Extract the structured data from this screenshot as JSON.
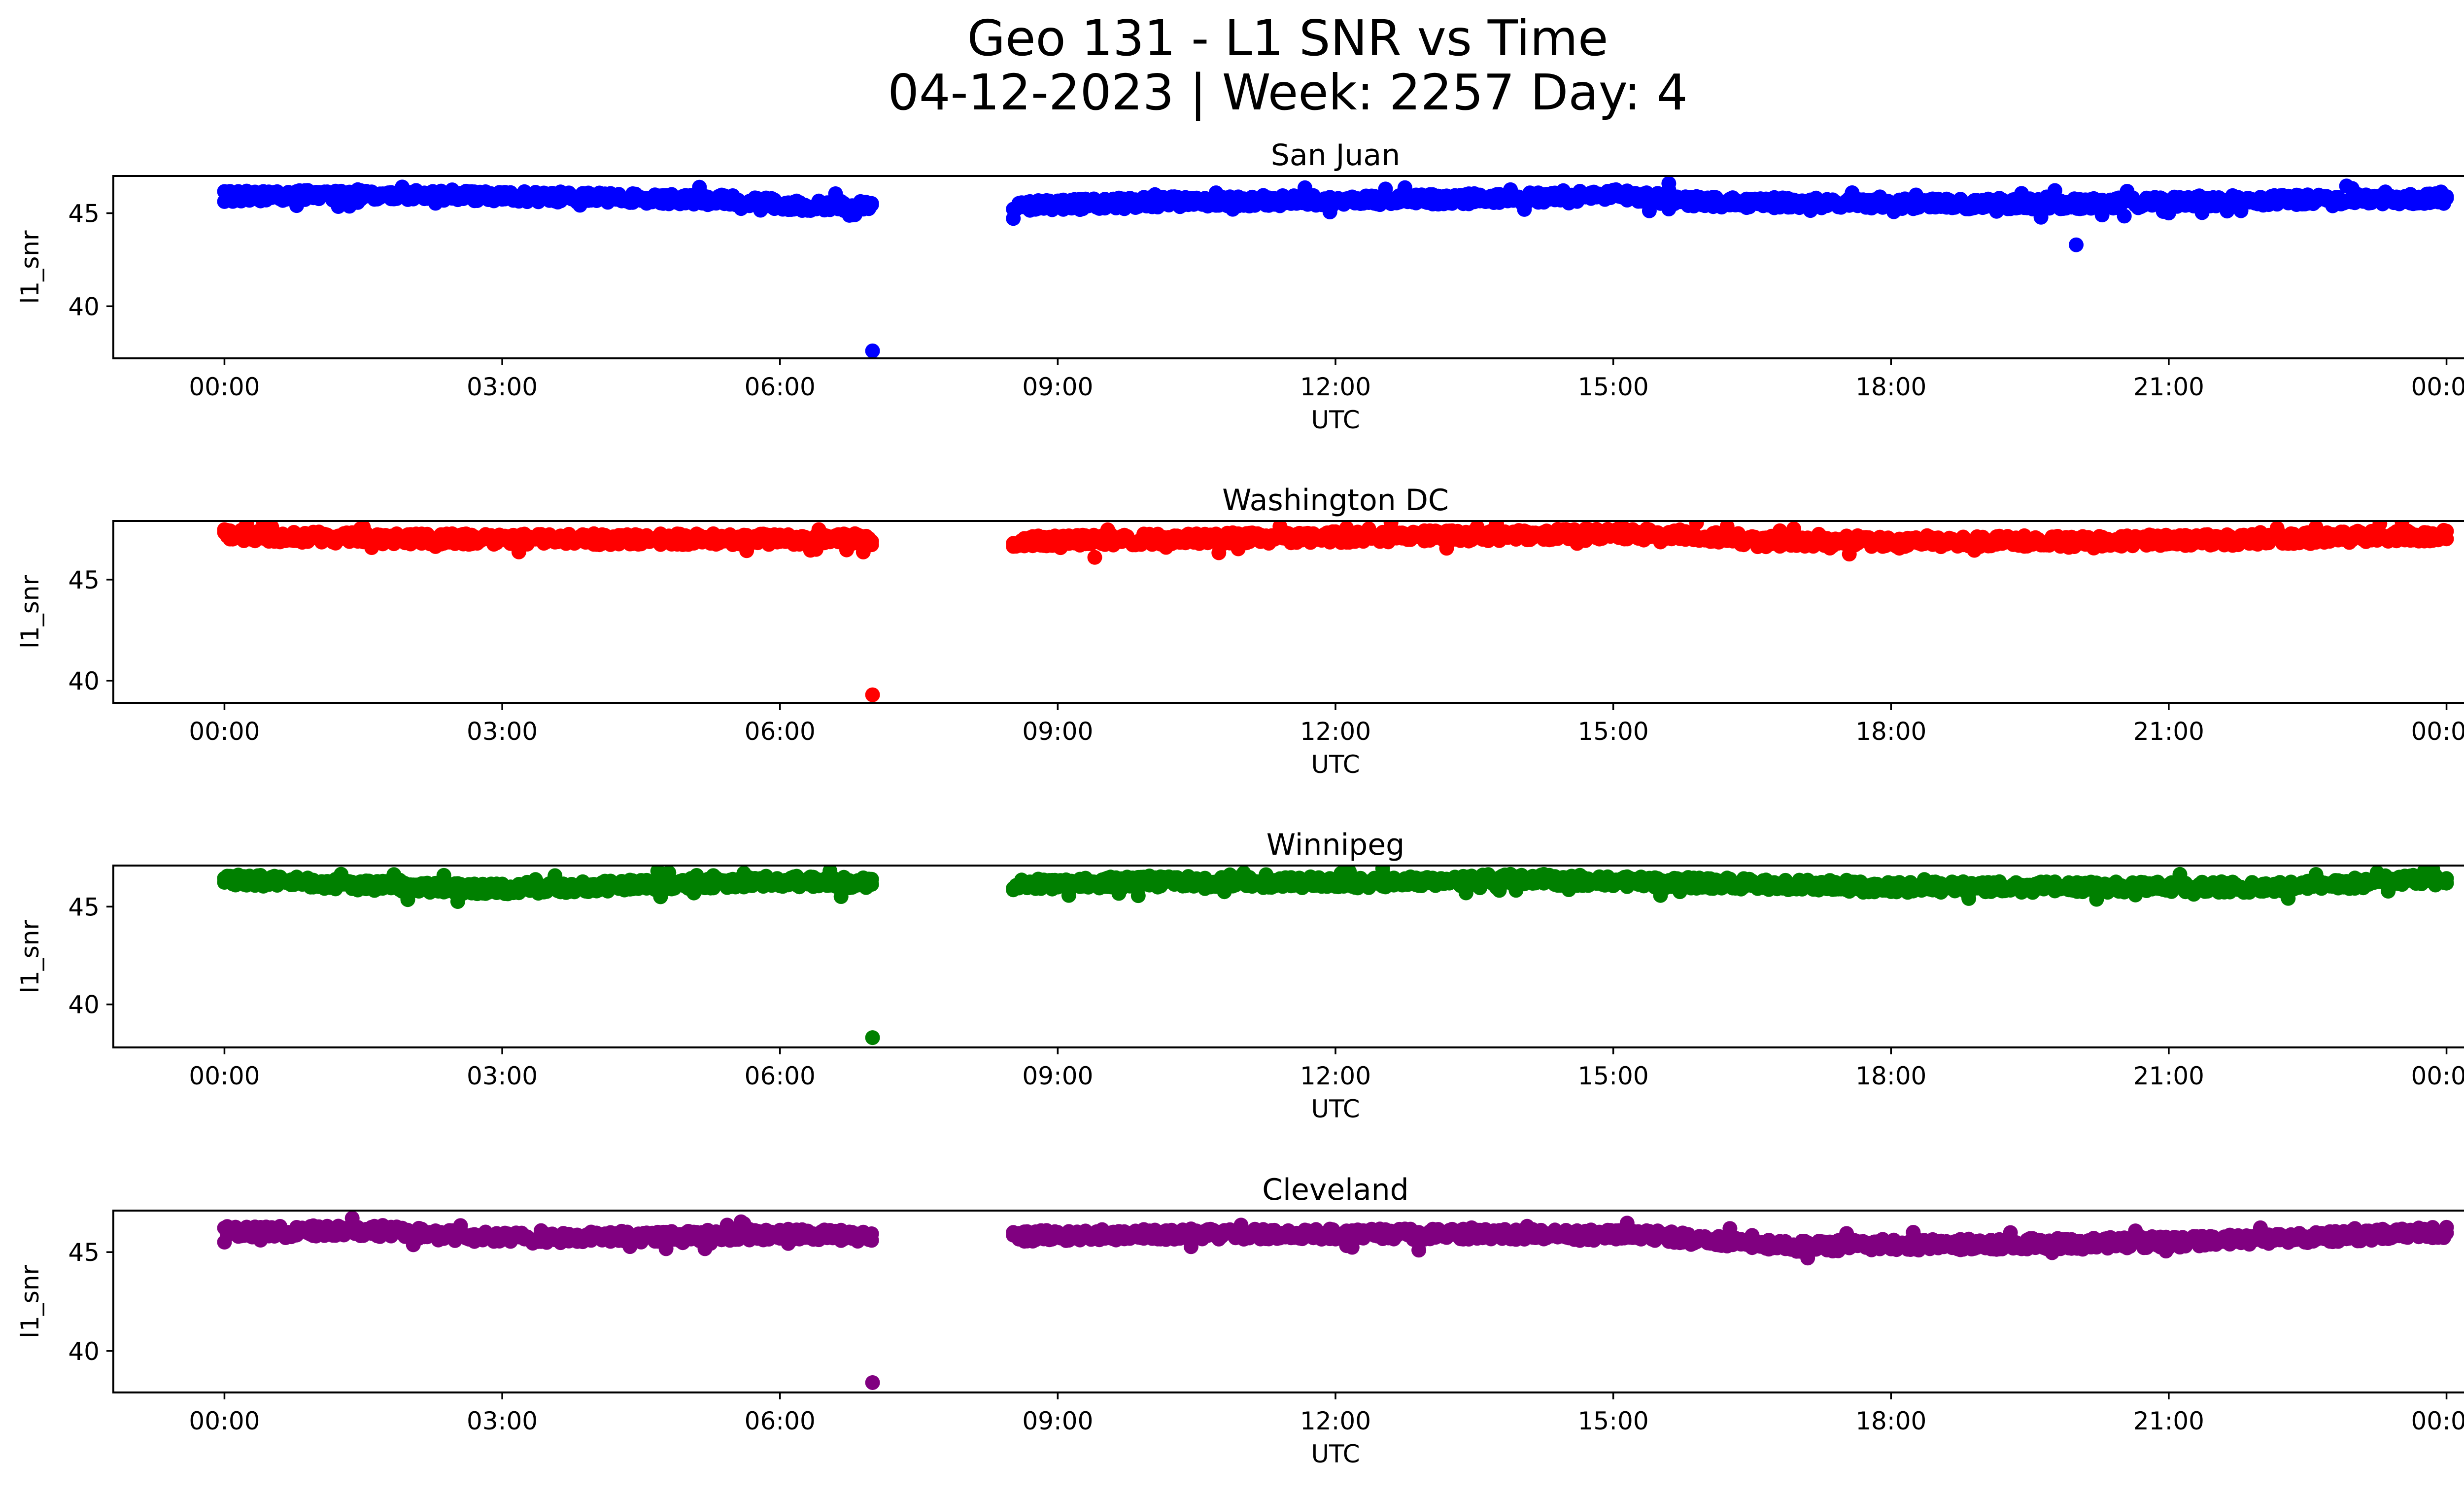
{
  "figure": {
    "title_line1": "Geo 131 - L1 SNR vs Time",
    "title_line2": "04-12-2023 | Week: 2257 Day: 4"
  },
  "chart_data": [
    {
      "type": "scatter",
      "title": "San Juan",
      "xlabel": "UTC",
      "ylabel": "l1_snr",
      "color": "#0000ff",
      "x_ticks": [
        "00:00",
        "03:00",
        "06:00",
        "09:00",
        "12:00",
        "15:00",
        "18:00",
        "21:00",
        "00:00"
      ],
      "y_ticks": [
        40,
        45
      ],
      "xlim_hours": [
        -1.2,
        25.2
      ],
      "ylim": [
        37.2,
        47.0
      ],
      "data_gap_hours": [
        7.0,
        8.5
      ],
      "band": [
        {
          "x": 0.0,
          "y": 45.9
        },
        {
          "x": 1.5,
          "y": 46.0
        },
        {
          "x": 3.0,
          "y": 45.9
        },
        {
          "x": 4.5,
          "y": 45.8
        },
        {
          "x": 5.5,
          "y": 45.7
        },
        {
          "x": 6.2,
          "y": 45.4
        },
        {
          "x": 7.0,
          "y": 45.4
        },
        {
          "x": 8.5,
          "y": 45.4
        },
        {
          "x": 10.0,
          "y": 45.6
        },
        {
          "x": 12.0,
          "y": 45.7
        },
        {
          "x": 14.0,
          "y": 45.8
        },
        {
          "x": 15.0,
          "y": 46.0
        },
        {
          "x": 16.0,
          "y": 45.6
        },
        {
          "x": 18.0,
          "y": 45.5
        },
        {
          "x": 20.0,
          "y": 45.5
        },
        {
          "x": 22.0,
          "y": 45.7
        },
        {
          "x": 24.0,
          "y": 45.8
        }
      ],
      "outliers": [
        {
          "x": 7.0,
          "y": 37.6
        },
        {
          "x": 20.0,
          "y": 43.3
        },
        {
          "x": 15.6,
          "y": 46.6
        }
      ]
    },
    {
      "type": "scatter",
      "title": "Washington DC",
      "xlabel": "UTC",
      "ylabel": "l1_snr",
      "color": "#ff0000",
      "x_ticks": [
        "00:00",
        "03:00",
        "06:00",
        "09:00",
        "12:00",
        "15:00",
        "18:00",
        "21:00",
        "00:00"
      ],
      "y_ticks": [
        40,
        45
      ],
      "xlim_hours": [
        -1.2,
        25.2
      ],
      "ylim": [
        38.9,
        47.9
      ],
      "data_gap_hours": [
        7.0,
        8.5
      ],
      "band": [
        {
          "x": 0.0,
          "y": 47.2
        },
        {
          "x": 2.0,
          "y": 47.0
        },
        {
          "x": 4.0,
          "y": 47.0
        },
        {
          "x": 6.0,
          "y": 47.0
        },
        {
          "x": 7.0,
          "y": 47.0
        },
        {
          "x": 8.5,
          "y": 46.9
        },
        {
          "x": 10.0,
          "y": 47.0
        },
        {
          "x": 12.0,
          "y": 47.1
        },
        {
          "x": 14.0,
          "y": 47.2
        },
        {
          "x": 15.5,
          "y": 47.3
        },
        {
          "x": 16.5,
          "y": 46.9
        },
        {
          "x": 18.0,
          "y": 46.9
        },
        {
          "x": 20.0,
          "y": 46.9
        },
        {
          "x": 22.0,
          "y": 47.0
        },
        {
          "x": 24.0,
          "y": 47.2
        }
      ],
      "outliers": [
        {
          "x": 7.0,
          "y": 39.3
        },
        {
          "x": 9.4,
          "y": 46.1
        }
      ]
    },
    {
      "type": "scatter",
      "title": "Winnipeg",
      "xlabel": "UTC",
      "ylabel": "l1_snr",
      "color": "#008000",
      "x_ticks": [
        "00:00",
        "03:00",
        "06:00",
        "09:00",
        "12:00",
        "15:00",
        "18:00",
        "21:00",
        "00:00"
      ],
      "y_ticks": [
        40,
        45
      ],
      "xlim_hours": [
        -1.2,
        25.2
      ],
      "ylim": [
        37.8,
        47.1
      ],
      "data_gap_hours": [
        7.0,
        8.5
      ],
      "band": [
        {
          "x": 0.0,
          "y": 46.4
        },
        {
          "x": 1.5,
          "y": 46.1
        },
        {
          "x": 3.0,
          "y": 45.9
        },
        {
          "x": 4.5,
          "y": 46.1
        },
        {
          "x": 6.0,
          "y": 46.3
        },
        {
          "x": 7.0,
          "y": 46.2
        },
        {
          "x": 8.5,
          "y": 46.1
        },
        {
          "x": 10.0,
          "y": 46.3
        },
        {
          "x": 12.0,
          "y": 46.2
        },
        {
          "x": 14.0,
          "y": 46.4
        },
        {
          "x": 16.0,
          "y": 46.2
        },
        {
          "x": 18.0,
          "y": 46.0
        },
        {
          "x": 20.0,
          "y": 46.0
        },
        {
          "x": 22.0,
          "y": 46.0
        },
        {
          "x": 24.0,
          "y": 46.4
        }
      ],
      "outliers": [
        {
          "x": 7.0,
          "y": 38.3
        }
      ]
    },
    {
      "type": "scatter",
      "title": "Cleveland",
      "xlabel": "UTC",
      "ylabel": "l1_snr",
      "color": "#800080",
      "x_ticks": [
        "00:00",
        "03:00",
        "06:00",
        "09:00",
        "12:00",
        "15:00",
        "18:00",
        "21:00",
        "00:00"
      ],
      "y_ticks": [
        40,
        45
      ],
      "xlim_hours": [
        -1.2,
        25.2
      ],
      "ylim": [
        37.9,
        47.1
      ],
      "data_gap_hours": [
        7.0,
        8.5
      ],
      "band": [
        {
          "x": 0.0,
          "y": 46.0
        },
        {
          "x": 1.5,
          "y": 46.1
        },
        {
          "x": 3.0,
          "y": 45.7
        },
        {
          "x": 4.5,
          "y": 45.8
        },
        {
          "x": 6.0,
          "y": 45.9
        },
        {
          "x": 7.0,
          "y": 45.8
        },
        {
          "x": 8.5,
          "y": 45.8
        },
        {
          "x": 10.0,
          "y": 45.9
        },
        {
          "x": 12.0,
          "y": 45.9
        },
        {
          "x": 14.0,
          "y": 45.9
        },
        {
          "x": 15.5,
          "y": 45.8
        },
        {
          "x": 17.0,
          "y": 45.3
        },
        {
          "x": 19.0,
          "y": 45.4
        },
        {
          "x": 21.0,
          "y": 45.5
        },
        {
          "x": 24.0,
          "y": 46.0
        }
      ],
      "outliers": [
        {
          "x": 7.0,
          "y": 38.4
        },
        {
          "x": 17.1,
          "y": 44.7
        },
        {
          "x": 12.9,
          "y": 45.1
        }
      ]
    }
  ]
}
